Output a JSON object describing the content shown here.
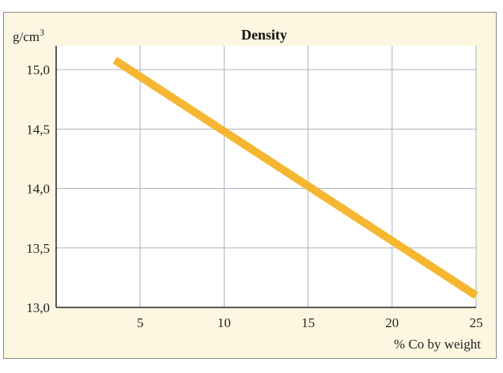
{
  "chart_data": {
    "type": "line",
    "title": "Density",
    "ylabel": "g/cm",
    "ylabel_superscript": "3",
    "xlabel": "% Co by weight",
    "xlim": [
      0,
      25
    ],
    "ylim": [
      13.0,
      15.2
    ],
    "grid": true,
    "x_ticks": [
      5,
      10,
      15,
      20,
      25
    ],
    "x_tick_labels": [
      "5",
      "10",
      "15",
      "20",
      "25"
    ],
    "y_ticks": [
      13.0,
      13.5,
      14.0,
      14.5,
      15.0
    ],
    "y_tick_labels": [
      "13,0",
      "13,5",
      "14,0",
      "14,5",
      "15,0"
    ],
    "series": [
      {
        "x": [
          3.5,
          25
        ],
        "y": [
          15.08,
          13.1
        ]
      }
    ]
  },
  "colors": {
    "background": "#fdf7e1",
    "plot_area": "#ffffff",
    "grid": "#a9b3bf",
    "axis": "#222222",
    "line": "#f5b731"
  }
}
